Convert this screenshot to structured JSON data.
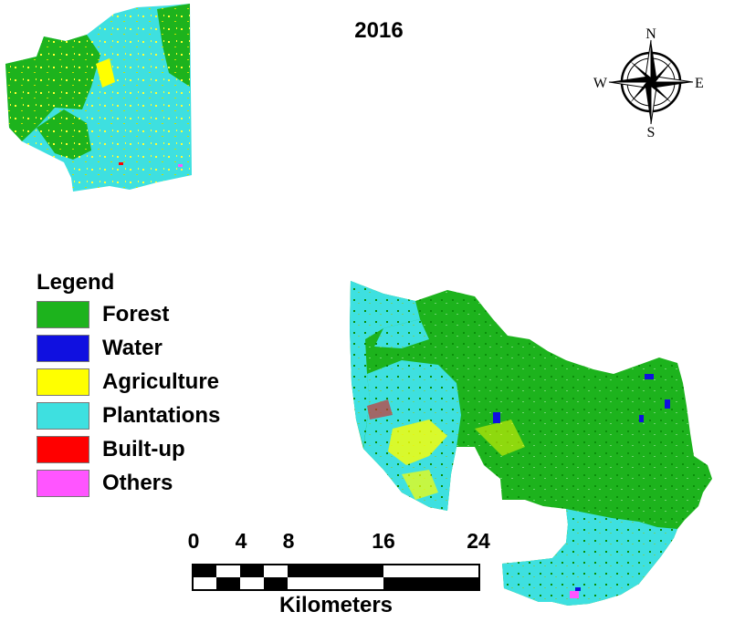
{
  "map": {
    "title": "2016",
    "compass": {
      "n": "N",
      "s": "S",
      "e": "E",
      "w": "W"
    }
  },
  "legend": {
    "title": "Legend",
    "items": [
      {
        "label": "Forest",
        "color": "#1db31d"
      },
      {
        "label": "Water",
        "color": "#1010e0"
      },
      {
        "label": "Agriculture",
        "color": "#ffff00"
      },
      {
        "label": "Plantations",
        "color": "#3ee0e0"
      },
      {
        "label": "Built-up",
        "color": "#ff0000"
      },
      {
        "label": "Others",
        "color": "#ff55ff"
      }
    ]
  },
  "scale": {
    "ticks": [
      "0",
      "4",
      "8",
      "16",
      "24"
    ],
    "units": "Kilometers"
  }
}
